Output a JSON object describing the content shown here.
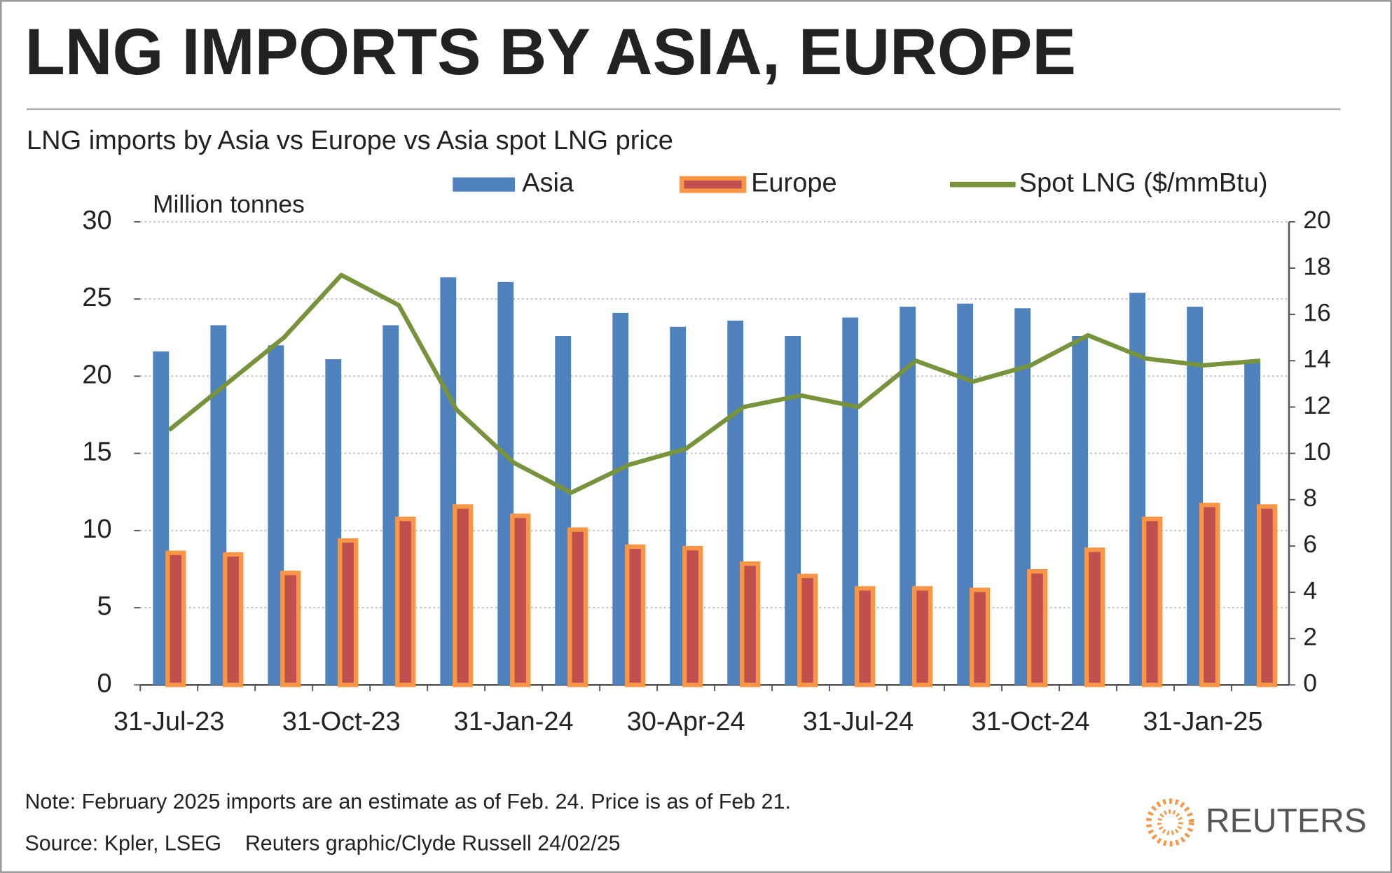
{
  "chart_data": {
    "type": "bar_line",
    "title": "LNG IMPORTS BY ASIA, EUROPE",
    "subtitle": "LNG imports by Asia vs Europe vs Asia spot LNG price",
    "y_label": "Million tonnes",
    "categories": [
      "31-Jul-23",
      null,
      null,
      "31-Oct-23",
      null,
      null,
      "31-Jan-24",
      null,
      null,
      "30-Apr-24",
      null,
      null,
      "31-Jul-24",
      null,
      null,
      "31-Oct-24",
      null,
      null,
      "31-Jan-25",
      null
    ],
    "series": [
      {
        "name": "Asia",
        "color": "#4f81bd",
        "values": [
          21.6,
          23.3,
          22.0,
          21.1,
          23.3,
          26.4,
          26.1,
          22.6,
          24.1,
          23.2,
          23.6,
          22.6,
          23.8,
          24.5,
          24.7,
          24.4,
          22.6,
          25.4,
          24.5,
          20.9
        ]
      },
      {
        "name": "Europe",
        "color": "#c0504d",
        "values": [
          8.7,
          8.6,
          7.4,
          9.5,
          10.9,
          11.7,
          11.1,
          10.2,
          9.1,
          9.0,
          8.0,
          7.2,
          6.4,
          6.4,
          6.3,
          7.5,
          8.9,
          10.9,
          11.8,
          11.7
        ]
      },
      {
        "name": "Spot LNG ($/mmBtu)",
        "color": "#77933c",
        "axis": "y2",
        "values": [
          11.0,
          13.0,
          15.0,
          17.7,
          16.4,
          11.9,
          9.6,
          8.3,
          9.5,
          10.2,
          12.0,
          12.5,
          12.0,
          14.0,
          13.1,
          13.8,
          15.1,
          14.1,
          13.8,
          14.0
        ]
      }
    ],
    "ylim": [
      0,
      30
    ],
    "yticks": [
      0,
      5,
      10,
      15,
      20,
      25,
      30
    ],
    "y2lim": [
      0,
      20
    ],
    "y2ticks": [
      0,
      2,
      4,
      6,
      8,
      10,
      12,
      14,
      16,
      18,
      20
    ],
    "grid": true,
    "note": "Note: February 2025 imports are an estimate as of Feb. 24. Price is as of Feb 21.",
    "source": "Source: Kpler, LSEG    Reuters graphic/Clyde Russell 24/02/25",
    "brand": "REUTERS"
  }
}
